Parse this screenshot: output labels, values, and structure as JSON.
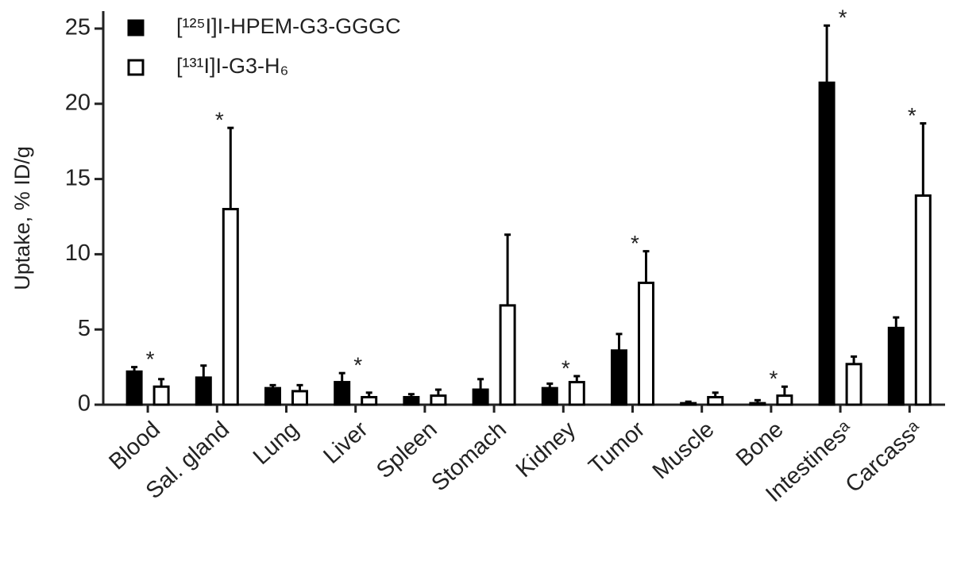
{
  "chart_data": {
    "type": "bar",
    "ylabel": "Uptake, % ID/g",
    "categories": [
      "Blood",
      "Sal. gland",
      "Lung",
      "Liver",
      "Spleen",
      "Stomach",
      "Kidney",
      "Tumor",
      "Muscle",
      "Bone",
      "Intestinesᵃ",
      "Carcassᵃ"
    ],
    "series": [
      {
        "name": "[¹²⁵I]I-HPEM-G3-GGGC",
        "color": "#000000",
        "values": [
          2.2,
          1.8,
          1.1,
          1.5,
          0.5,
          1.0,
          1.1,
          3.6,
          0.1,
          0.1,
          21.4,
          5.1
        ],
        "errors": [
          0.3,
          0.8,
          0.2,
          0.6,
          0.2,
          0.7,
          0.3,
          1.1,
          0.1,
          0.2,
          3.8,
          0.7
        ]
      },
      {
        "name": "[¹³¹I]I-G3-H₆",
        "color": "#ffffff",
        "values": [
          1.2,
          13.0,
          0.9,
          0.5,
          0.6,
          6.6,
          1.5,
          8.1,
          0.5,
          0.6,
          2.7,
          13.9
        ],
        "errors": [
          0.5,
          5.4,
          0.4,
          0.3,
          0.4,
          4.7,
          0.4,
          2.1,
          0.3,
          0.6,
          0.5,
          4.8
        ]
      }
    ],
    "significance": [
      "*",
      "*",
      null,
      "*",
      null,
      null,
      "*",
      "*",
      null,
      "*",
      "*",
      "*"
    ],
    "ylim": [
      0,
      25
    ],
    "yticks": [
      0,
      5,
      10,
      15,
      20,
      25
    ],
    "grid": false,
    "legend": "top-left"
  }
}
